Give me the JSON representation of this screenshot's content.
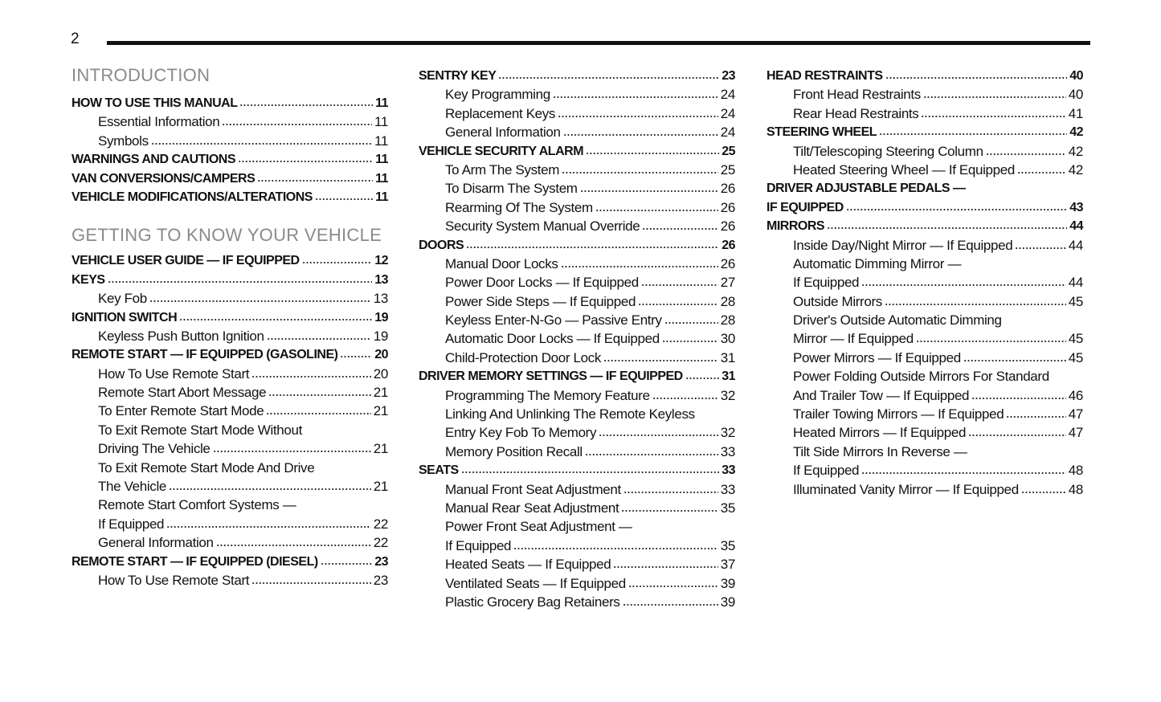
{
  "page_number": "2",
  "column1": {
    "sections": [
      {
        "title": "INTRODUCTION",
        "rows": [
          {
            "t": "HOW TO USE THIS MANUAL",
            "p": "11",
            "b": true
          },
          {
            "t": "Essential Information",
            "p": "11"
          },
          {
            "t": "Symbols",
            "p": "11"
          },
          {
            "t": "WARNINGS AND CAUTIONS",
            "p": "11",
            "b": true
          },
          {
            "t": "VAN CONVERSIONS/CAMPERS",
            "p": "11",
            "b": true
          },
          {
            "t": "VEHICLE MODIFICATIONS/ALTERATIONS",
            "p": "11",
            "b": true
          }
        ]
      },
      {
        "title": "GETTING TO KNOW YOUR VEHICLE",
        "rows": [
          {
            "t": "VEHICLE USER GUIDE — IF EQUIPPED",
            "p": "12",
            "b": true
          },
          {
            "t": "KEYS",
            "p": "13",
            "b": true
          },
          {
            "t": "Key Fob",
            "p": "13"
          },
          {
            "t": "IGNITION SWITCH",
            "p": "19",
            "b": true
          },
          {
            "t": "Keyless Push Button Ignition",
            "p": "19"
          },
          {
            "t": "REMOTE START — IF EQUIPPED (GASOLINE)",
            "p": "20",
            "b": true
          },
          {
            "t": "How To Use Remote Start",
            "p": "20"
          },
          {
            "t": "Remote Start Abort Message",
            "p": "21"
          },
          {
            "t": "To Enter Remote Start Mode",
            "p": "21"
          },
          {
            "t": "To Exit Remote Start Mode Without",
            "p": ""
          },
          {
            "t": "Driving The Vehicle",
            "p": "21"
          },
          {
            "t": "To Exit Remote Start Mode And Drive",
            "p": ""
          },
          {
            "t": "The Vehicle",
            "p": "21"
          },
          {
            "t": "Remote Start Comfort Systems —",
            "p": ""
          },
          {
            "t": "If Equipped",
            "p": "22"
          },
          {
            "t": "General Information",
            "p": "22"
          },
          {
            "t": "REMOTE START — IF EQUIPPED (DIESEL)",
            "p": "23",
            "b": true
          },
          {
            "t": "How To Use Remote Start",
            "p": "23"
          }
        ]
      }
    ]
  },
  "column2": {
    "rows": [
      {
        "t": "SENTRY KEY",
        "p": "23",
        "b": true
      },
      {
        "t": "Key Programming",
        "p": "24"
      },
      {
        "t": "Replacement Keys",
        "p": "24"
      },
      {
        "t": "General Information",
        "p": "24"
      },
      {
        "t": "VEHICLE SECURITY ALARM",
        "p": "25",
        "b": true
      },
      {
        "t": "To Arm The System",
        "p": "25"
      },
      {
        "t": "To Disarm The System",
        "p": "26"
      },
      {
        "t": "Rearming Of The System",
        "p": "26"
      },
      {
        "t": "Security System Manual Override",
        "p": "26"
      },
      {
        "t": "DOORS",
        "p": "26",
        "b": true
      },
      {
        "t": "Manual Door Locks",
        "p": "26"
      },
      {
        "t": "Power Door Locks — If Equipped",
        "p": "27"
      },
      {
        "t": "Power Side Steps — If Equipped",
        "p": "28"
      },
      {
        "t": "Keyless Enter-N-Go — Passive Entry",
        "p": "28"
      },
      {
        "t": "Automatic Door Locks — If Equipped",
        "p": "30"
      },
      {
        "t": "Child-Protection Door Lock",
        "p": "31"
      },
      {
        "t": "DRIVER MEMORY SETTINGS — IF EQUIPPED",
        "p": "31",
        "b": true
      },
      {
        "t": "Programming The Memory Feature",
        "p": "32"
      },
      {
        "t": "Linking And Unlinking The Remote Keyless",
        "p": ""
      },
      {
        "t": "Entry Key Fob To Memory",
        "p": "32"
      },
      {
        "t": "Memory Position Recall",
        "p": "33"
      },
      {
        "t": "SEATS",
        "p": "33",
        "b": true
      },
      {
        "t": "Manual Front Seat Adjustment",
        "p": "33"
      },
      {
        "t": "Manual Rear Seat Adjustment",
        "p": "35"
      },
      {
        "t": "Power Front Seat Adjustment —",
        "p": ""
      },
      {
        "t": "If Equipped",
        "p": "35"
      },
      {
        "t": "Heated Seats — If Equipped",
        "p": "37"
      },
      {
        "t": "Ventilated Seats — If Equipped",
        "p": "39"
      },
      {
        "t": "Plastic Grocery Bag Retainers",
        "p": "39"
      }
    ]
  },
  "column3": {
    "rows": [
      {
        "t": "HEAD RESTRAINTS",
        "p": "40",
        "b": true
      },
      {
        "t": "Front Head Restraints",
        "p": "40"
      },
      {
        "t": "Rear Head Restraints",
        "p": "41"
      },
      {
        "t": "STEERING WHEEL",
        "p": "42",
        "b": true
      },
      {
        "t": "Tilt/Telescoping Steering Column",
        "p": "42"
      },
      {
        "t": "Heated Steering Wheel — If Equipped",
        "p": "42"
      },
      {
        "t": "DRIVER ADJUSTABLE PEDALS —",
        "p": "",
        "b": true
      },
      {
        "t": "IF EQUIPPED",
        "p": "43",
        "b": true
      },
      {
        "t": "MIRRORS",
        "p": "44",
        "b": true
      },
      {
        "t": "Inside Day/Night Mirror — If Equipped",
        "p": "44"
      },
      {
        "t": "Automatic Dimming Mirror —",
        "p": ""
      },
      {
        "t": "If Equipped",
        "p": "44"
      },
      {
        "t": "Outside Mirrors",
        "p": "45"
      },
      {
        "t": "Driver's Outside Automatic Dimming",
        "p": ""
      },
      {
        "t": "Mirror — If Equipped",
        "p": "45"
      },
      {
        "t": "Power Mirrors — If Equipped",
        "p": "45"
      },
      {
        "t": "Power Folding Outside Mirrors For Standard",
        "p": ""
      },
      {
        "t": "And Trailer Tow — If Equipped",
        "p": "46"
      },
      {
        "t": "Trailer Towing Mirrors — If Equipped",
        "p": "47"
      },
      {
        "t": "Heated Mirrors — If Equipped",
        "p": "47"
      },
      {
        "t": "Tilt Side Mirrors In Reverse —",
        "p": ""
      },
      {
        "t": "If Equipped",
        "p": "48"
      },
      {
        "t": "Illuminated Vanity Mirror — If Equipped",
        "p": "48"
      }
    ]
  }
}
